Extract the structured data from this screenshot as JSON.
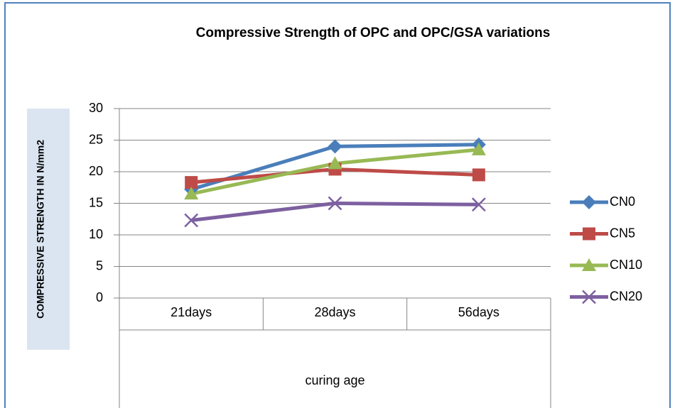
{
  "chart_data": {
    "type": "line",
    "title": "Compressive Strength of OPC and OPC/GSA variations",
    "y_label": "COMPRESSIVE STRENGTH IN N/mm2",
    "x_label": "curing age",
    "categories": [
      "21days",
      "28days",
      "56days"
    ],
    "series": [
      {
        "name": "CN0",
        "color": "#4a7ebb",
        "marker": "diamond",
        "values": [
          17.2,
          24.0,
          24.3
        ]
      },
      {
        "name": "CN5",
        "color": "#be4b48",
        "marker": "square",
        "values": [
          18.3,
          20.4,
          19.5
        ]
      },
      {
        "name": "CN10",
        "color": "#98b954",
        "marker": "triangle",
        "values": [
          16.5,
          21.3,
          23.5
        ]
      },
      {
        "name": "CN20",
        "color": "#7d60a0",
        "marker": "x",
        "values": [
          12.3,
          15.0,
          14.8
        ]
      }
    ],
    "ylim": [
      0,
      30
    ],
    "yticks": [
      0,
      5,
      10,
      15,
      20,
      25,
      30
    ],
    "grid": true,
    "legend": "right"
  }
}
